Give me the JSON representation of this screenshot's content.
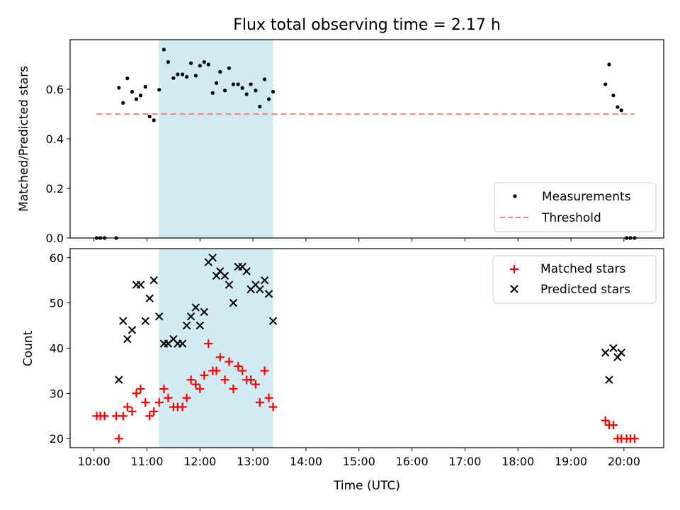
{
  "chart_data": {
    "title": "Flux total observing time = 2.17 h",
    "xlabel": "Time (UTC)",
    "x_tick_labels": [
      "10:00",
      "11:00",
      "12:00",
      "13:00",
      "14:00",
      "15:00",
      "16:00",
      "17:00",
      "18:00",
      "19:00",
      "20:00"
    ],
    "x_range_hours": [
      9.55,
      20.75
    ],
    "shaded_region_hours": [
      11.22,
      13.38
    ],
    "shade_color": "#add8e6",
    "top": {
      "type": "scatter",
      "ylabel": "Matched/Predicted stars",
      "ylim": [
        0,
        0.8
      ],
      "y_tick_labels": [
        "0.0",
        "0.2",
        "0.4",
        "0.6"
      ],
      "threshold": {
        "value": 0.5,
        "x_range_hours": [
          10.05,
          20.2
        ],
        "color": "#ff7f7f"
      },
      "legend": {
        "position": "lower right",
        "entries": [
          "Measurements",
          "Threshold"
        ]
      },
      "series": [
        {
          "name": "Measurements",
          "color": "#000000",
          "points": [
            [
              10.05,
              0.0
            ],
            [
              10.12,
              0.0
            ],
            [
              10.2,
              0.0
            ],
            [
              10.42,
              0.0
            ],
            [
              10.47,
              0.606
            ],
            [
              10.55,
              0.545
            ],
            [
              10.63,
              0.644
            ],
            [
              10.72,
              0.59
            ],
            [
              10.8,
              0.56
            ],
            [
              10.88,
              0.575
            ],
            [
              10.97,
              0.61
            ],
            [
              11.05,
              0.49
            ],
            [
              11.13,
              0.475
            ],
            [
              11.23,
              0.598
            ],
            [
              11.32,
              0.76
            ],
            [
              11.4,
              0.71
            ],
            [
              11.5,
              0.645
            ],
            [
              11.58,
              0.66
            ],
            [
              11.67,
              0.66
            ],
            [
              11.75,
              0.65
            ],
            [
              11.83,
              0.705
            ],
            [
              11.92,
              0.655
            ],
            [
              12.0,
              0.695
            ],
            [
              12.08,
              0.71
            ],
            [
              12.16,
              0.7
            ],
            [
              12.24,
              0.585
            ],
            [
              12.31,
              0.625
            ],
            [
              12.38,
              0.67
            ],
            [
              12.47,
              0.595
            ],
            [
              12.55,
              0.685
            ],
            [
              12.63,
              0.62
            ],
            [
              12.72,
              0.62
            ],
            [
              12.8,
              0.605
            ],
            [
              12.88,
              0.58
            ],
            [
              12.96,
              0.62
            ],
            [
              13.05,
              0.595
            ],
            [
              13.13,
              0.53
            ],
            [
              13.22,
              0.64
            ],
            [
              13.3,
              0.56
            ],
            [
              13.38,
              0.59
            ],
            [
              19.65,
              0.62
            ],
            [
              19.72,
              0.7
            ],
            [
              19.8,
              0.575
            ],
            [
              19.88,
              0.528
            ],
            [
              19.95,
              0.515
            ],
            [
              20.05,
              0.0
            ],
            [
              20.12,
              0.0
            ],
            [
              20.2,
              0.0
            ]
          ]
        }
      ]
    },
    "bottom": {
      "type": "scatter",
      "ylabel": "Count",
      "ylim": [
        18,
        62
      ],
      "y_tick_labels": [
        "20",
        "30",
        "40",
        "50",
        "60"
      ],
      "legend": {
        "position": "upper right",
        "entries": [
          "Matched stars",
          "Predicted stars"
        ]
      },
      "series": [
        {
          "name": "Matched stars",
          "color": "#ff0000",
          "marker": "plus",
          "points": [
            [
              10.05,
              25
            ],
            [
              10.12,
              25
            ],
            [
              10.2,
              25
            ],
            [
              10.42,
              25
            ],
            [
              10.47,
              20
            ],
            [
              10.55,
              25
            ],
            [
              10.63,
              27
            ],
            [
              10.72,
              26
            ],
            [
              10.8,
              30
            ],
            [
              10.88,
              31
            ],
            [
              10.97,
              28
            ],
            [
              11.05,
              25
            ],
            [
              11.13,
              26
            ],
            [
              11.23,
              28
            ],
            [
              11.32,
              31
            ],
            [
              11.4,
              29
            ],
            [
              11.5,
              27
            ],
            [
              11.58,
              27
            ],
            [
              11.67,
              27
            ],
            [
              11.75,
              29
            ],
            [
              11.83,
              33
            ],
            [
              11.92,
              32
            ],
            [
              12.0,
              31
            ],
            [
              12.08,
              34
            ],
            [
              12.16,
              41
            ],
            [
              12.24,
              35
            ],
            [
              12.31,
              35
            ],
            [
              12.38,
              38
            ],
            [
              12.47,
              33
            ],
            [
              12.55,
              37
            ],
            [
              12.63,
              31
            ],
            [
              12.72,
              36
            ],
            [
              12.8,
              35
            ],
            [
              12.88,
              33
            ],
            [
              12.96,
              33
            ],
            [
              13.05,
              32
            ],
            [
              13.13,
              28
            ],
            [
              13.22,
              35
            ],
            [
              13.3,
              29
            ],
            [
              13.38,
              27
            ],
            [
              19.65,
              24
            ],
            [
              19.72,
              23
            ],
            [
              19.8,
              23
            ],
            [
              19.88,
              20
            ],
            [
              19.95,
              20
            ],
            [
              20.05,
              20
            ],
            [
              20.12,
              20
            ],
            [
              20.2,
              20
            ]
          ]
        },
        {
          "name": "Predicted stars",
          "color": "#000000",
          "marker": "x",
          "points": [
            [
              10.47,
              33
            ],
            [
              10.55,
              46
            ],
            [
              10.63,
              42
            ],
            [
              10.72,
              44
            ],
            [
              10.8,
              54
            ],
            [
              10.88,
              54
            ],
            [
              10.97,
              46
            ],
            [
              11.05,
              51
            ],
            [
              11.13,
              55
            ],
            [
              11.23,
              47
            ],
            [
              11.32,
              41
            ],
            [
              11.4,
              41
            ],
            [
              11.5,
              42
            ],
            [
              11.58,
              41
            ],
            [
              11.67,
              41
            ],
            [
              11.75,
              45
            ],
            [
              11.83,
              47
            ],
            [
              11.92,
              49
            ],
            [
              12.0,
              45
            ],
            [
              12.08,
              48
            ],
            [
              12.16,
              59
            ],
            [
              12.24,
              60
            ],
            [
              12.31,
              56
            ],
            [
              12.38,
              57
            ],
            [
              12.47,
              56
            ],
            [
              12.55,
              54
            ],
            [
              12.63,
              50
            ],
            [
              12.72,
              58
            ],
            [
              12.8,
              58
            ],
            [
              12.88,
              57
            ],
            [
              12.96,
              53
            ],
            [
              13.05,
              54
            ],
            [
              13.13,
              53
            ],
            [
              13.22,
              55
            ],
            [
              13.3,
              52
            ],
            [
              13.38,
              46
            ],
            [
              19.65,
              39
            ],
            [
              19.72,
              33
            ],
            [
              19.8,
              40
            ],
            [
              19.88,
              38
            ],
            [
              19.95,
              39
            ]
          ]
        }
      ]
    }
  }
}
